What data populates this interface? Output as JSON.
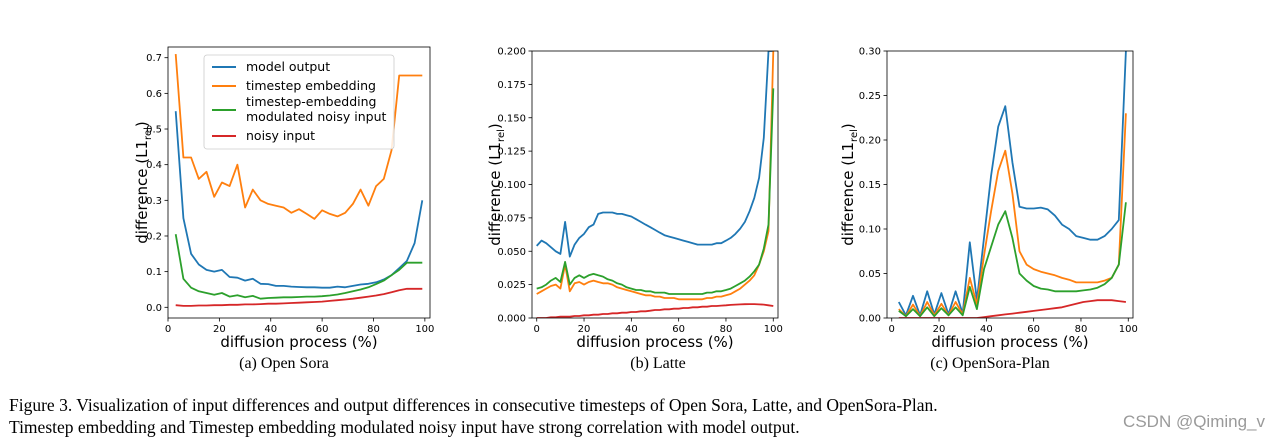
{
  "colors": {
    "model_output": "#1f77b4",
    "timestep_embedding": "#ff7f0e",
    "modulated_input": "#2ca02c",
    "noisy_input": "#d62728"
  },
  "chart_data": [
    {
      "type": "line",
      "title": "",
      "subcaption": "(a) Open Sora",
      "xlabel": "diffusion process (%)",
      "ylabel_main": "difference (L1",
      "ylabel_sub": "rel",
      "ylabel_close": ")",
      "xlim": [
        0,
        102
      ],
      "ylim": [
        -0.03,
        0.73
      ],
      "xticks": [
        0,
        20,
        40,
        60,
        80,
        100
      ],
      "yticks": [
        0.0,
        0.1,
        0.2,
        0.3,
        0.4,
        0.5,
        0.6,
        0.7
      ],
      "ytick_labels": [
        "0.0",
        "0.1",
        "0.2",
        "0.3",
        "0.4",
        "0.5",
        "0.6",
        "0.7"
      ],
      "legend": {
        "placement": "top-left",
        "entries": [
          {
            "key": "model_output",
            "label": "model output"
          },
          {
            "key": "timestep_embedding",
            "label": "timestep embedding"
          },
          {
            "key": "modulated_input",
            "label": "timestep-embedding",
            "label2": "modulated noisy input"
          },
          {
            "key": "noisy_input",
            "label": "noisy input"
          }
        ]
      },
      "x": [
        3,
        6,
        9,
        12,
        15,
        18,
        21,
        24,
        27,
        30,
        33,
        36,
        39,
        42,
        45,
        48,
        51,
        54,
        57,
        60,
        63,
        66,
        69,
        72,
        75,
        78,
        81,
        84,
        87,
        90,
        93,
        96,
        99
      ],
      "series": [
        {
          "name": "model output",
          "key": "model_output",
          "values": [
            0.55,
            0.25,
            0.15,
            0.12,
            0.105,
            0.1,
            0.105,
            0.085,
            0.083,
            0.075,
            0.08,
            0.066,
            0.065,
            0.06,
            0.06,
            0.058,
            0.057,
            0.056,
            0.056,
            0.055,
            0.055,
            0.058,
            0.056,
            0.06,
            0.064,
            0.066,
            0.07,
            0.078,
            0.09,
            0.11,
            0.13,
            0.18,
            0.3
          ]
        },
        {
          "name": "timestep embedding",
          "key": "timestep_embedding",
          "values": [
            0.71,
            0.42,
            0.42,
            0.36,
            0.38,
            0.31,
            0.35,
            0.34,
            0.4,
            0.28,
            0.33,
            0.3,
            0.29,
            0.285,
            0.28,
            0.265,
            0.275,
            0.262,
            0.248,
            0.272,
            0.262,
            0.255,
            0.265,
            0.29,
            0.33,
            0.285,
            0.34,
            0.36,
            0.44,
            0.65,
            0.65,
            0.65,
            0.65
          ]
        },
        {
          "name": "timestep-embedding modulated noisy input",
          "key": "modulated_input",
          "values": [
            0.205,
            0.08,
            0.055,
            0.045,
            0.04,
            0.035,
            0.04,
            0.03,
            0.034,
            0.028,
            0.032,
            0.024,
            0.026,
            0.027,
            0.028,
            0.028,
            0.029,
            0.03,
            0.03,
            0.031,
            0.033,
            0.036,
            0.04,
            0.045,
            0.05,
            0.056,
            0.065,
            0.075,
            0.09,
            0.105,
            0.125,
            0.125,
            0.125
          ]
        },
        {
          "name": "noisy input",
          "key": "noisy_input",
          "values": [
            0.006,
            0.004,
            0.004,
            0.005,
            0.005,
            0.006,
            0.006,
            0.007,
            0.007,
            0.008,
            0.008,
            0.009,
            0.01,
            0.01,
            0.011,
            0.012,
            0.013,
            0.014,
            0.015,
            0.016,
            0.018,
            0.02,
            0.022,
            0.024,
            0.027,
            0.03,
            0.033,
            0.037,
            0.042,
            0.048,
            0.052,
            0.052,
            0.052
          ]
        }
      ]
    },
    {
      "type": "line",
      "title": "",
      "subcaption": "(b) Latte",
      "xlabel": "diffusion process (%)",
      "ylabel_main": "difference (L1",
      "ylabel_sub": "rel",
      "ylabel_close": ")",
      "xlim": [
        -2,
        102
      ],
      "ylim": [
        0.0,
        0.2
      ],
      "xticks": [
        0,
        20,
        40,
        60,
        80,
        100
      ],
      "yticks": [
        0.0,
        0.025,
        0.05,
        0.075,
        0.1,
        0.125,
        0.15,
        0.175,
        0.2
      ],
      "ytick_labels": [
        "0.000",
        "0.025",
        "0.050",
        "0.075",
        "0.100",
        "0.125",
        "0.150",
        "0.175",
        "0.200"
      ],
      "x": [
        0,
        2,
        4,
        6,
        8,
        10,
        12,
        14,
        16,
        18,
        20,
        22,
        24,
        26,
        28,
        30,
        32,
        34,
        36,
        38,
        40,
        42,
        44,
        46,
        48,
        50,
        52,
        54,
        56,
        58,
        60,
        62,
        64,
        66,
        68,
        70,
        72,
        74,
        76,
        78,
        80,
        82,
        84,
        86,
        88,
        90,
        92,
        94,
        96,
        98,
        100
      ],
      "series": [
        {
          "name": "model output",
          "key": "model_output",
          "values": [
            0.054,
            0.058,
            0.056,
            0.053,
            0.05,
            0.048,
            0.072,
            0.046,
            0.055,
            0.06,
            0.063,
            0.068,
            0.07,
            0.078,
            0.079,
            0.079,
            0.079,
            0.078,
            0.078,
            0.077,
            0.076,
            0.074,
            0.072,
            0.07,
            0.068,
            0.066,
            0.064,
            0.062,
            0.061,
            0.06,
            0.059,
            0.058,
            0.057,
            0.056,
            0.055,
            0.055,
            0.055,
            0.055,
            0.056,
            0.056,
            0.058,
            0.06,
            0.063,
            0.067,
            0.072,
            0.08,
            0.09,
            0.105,
            0.135,
            0.2,
            0.2
          ]
        },
        {
          "name": "timestep embedding",
          "key": "timestep_embedding",
          "values": [
            0.018,
            0.02,
            0.022,
            0.024,
            0.025,
            0.022,
            0.04,
            0.02,
            0.026,
            0.027,
            0.025,
            0.027,
            0.028,
            0.027,
            0.026,
            0.026,
            0.025,
            0.023,
            0.022,
            0.021,
            0.02,
            0.019,
            0.018,
            0.017,
            0.017,
            0.016,
            0.016,
            0.015,
            0.015,
            0.015,
            0.014,
            0.014,
            0.014,
            0.014,
            0.014,
            0.014,
            0.015,
            0.015,
            0.016,
            0.016,
            0.017,
            0.018,
            0.02,
            0.022,
            0.025,
            0.028,
            0.032,
            0.04,
            0.05,
            0.065,
            0.2
          ]
        },
        {
          "name": "timestep-embedding modulated noisy input",
          "key": "modulated_input",
          "values": [
            0.022,
            0.023,
            0.025,
            0.028,
            0.03,
            0.027,
            0.042,
            0.025,
            0.03,
            0.032,
            0.03,
            0.032,
            0.033,
            0.032,
            0.031,
            0.029,
            0.028,
            0.026,
            0.025,
            0.023,
            0.022,
            0.021,
            0.021,
            0.02,
            0.02,
            0.019,
            0.019,
            0.019,
            0.018,
            0.018,
            0.018,
            0.018,
            0.018,
            0.018,
            0.018,
            0.018,
            0.019,
            0.019,
            0.02,
            0.02,
            0.021,
            0.022,
            0.024,
            0.026,
            0.028,
            0.031,
            0.035,
            0.04,
            0.052,
            0.07,
            0.172
          ]
        },
        {
          "name": "noisy input",
          "key": "noisy_input",
          "values": [
            0.0,
            0.0,
            0.0,
            0.0005,
            0.0005,
            0.001,
            0.001,
            0.001,
            0.0015,
            0.0015,
            0.002,
            0.002,
            0.0025,
            0.0025,
            0.003,
            0.003,
            0.0035,
            0.0035,
            0.004,
            0.004,
            0.0045,
            0.0045,
            0.005,
            0.005,
            0.0055,
            0.006,
            0.006,
            0.0065,
            0.0065,
            0.007,
            0.007,
            0.0075,
            0.0075,
            0.008,
            0.008,
            0.0085,
            0.0085,
            0.009,
            0.009,
            0.0093,
            0.0095,
            0.0098,
            0.01,
            0.0102,
            0.0103,
            0.0104,
            0.0104,
            0.0102,
            0.01,
            0.0095,
            0.009
          ]
        }
      ]
    },
    {
      "type": "line",
      "title": "",
      "subcaption": "(c) OpenSora-Plan",
      "xlabel": "diffusion process (%)",
      "ylabel_main": "difference (L1",
      "ylabel_sub": "rel",
      "ylabel_close": ")",
      "xlim": [
        -2,
        102
      ],
      "ylim": [
        0.0,
        0.3
      ],
      "xticks": [
        0,
        20,
        40,
        60,
        80,
        100
      ],
      "yticks": [
        0.0,
        0.05,
        0.1,
        0.15,
        0.2,
        0.25,
        0.3
      ],
      "ytick_labels": [
        "0.00",
        "0.05",
        "0.10",
        "0.15",
        "0.20",
        "0.25",
        "0.30"
      ],
      "x": [
        3,
        6,
        9,
        12,
        15,
        18,
        21,
        24,
        27,
        30,
        33,
        36,
        39,
        42,
        45,
        48,
        51,
        54,
        57,
        60,
        63,
        66,
        69,
        72,
        75,
        78,
        81,
        84,
        87,
        90,
        93,
        96,
        99
      ],
      "series": [
        {
          "name": "model output",
          "key": "model_output",
          "values": [
            0.018,
            0.003,
            0.025,
            0.003,
            0.03,
            0.004,
            0.028,
            0.004,
            0.03,
            0.005,
            0.085,
            0.02,
            0.09,
            0.16,
            0.215,
            0.238,
            0.175,
            0.125,
            0.123,
            0.123,
            0.124,
            0.122,
            0.115,
            0.105,
            0.1,
            0.092,
            0.09,
            0.088,
            0.088,
            0.092,
            0.1,
            0.11,
            0.3
          ]
        },
        {
          "name": "timestep embedding",
          "key": "timestep_embedding",
          "values": [
            0.01,
            0.002,
            0.015,
            0.002,
            0.018,
            0.003,
            0.016,
            0.003,
            0.018,
            0.004,
            0.045,
            0.015,
            0.07,
            0.12,
            0.165,
            0.188,
            0.14,
            0.075,
            0.06,
            0.055,
            0.052,
            0.05,
            0.048,
            0.045,
            0.043,
            0.04,
            0.04,
            0.04,
            0.04,
            0.042,
            0.045,
            0.06,
            0.23
          ]
        },
        {
          "name": "timestep-embedding modulated noisy input",
          "key": "modulated_input",
          "values": [
            0.008,
            0.002,
            0.01,
            0.002,
            0.012,
            0.002,
            0.011,
            0.003,
            0.012,
            0.003,
            0.035,
            0.01,
            0.055,
            0.08,
            0.105,
            0.12,
            0.09,
            0.05,
            0.042,
            0.036,
            0.033,
            0.032,
            0.03,
            0.03,
            0.03,
            0.03,
            0.031,
            0.032,
            0.034,
            0.038,
            0.045,
            0.06,
            0.13
          ]
        },
        {
          "name": "noisy input",
          "key": "noisy_input",
          "values": [
            0.0,
            0.0,
            0.0,
            0.0,
            0.0,
            0.0,
            0.0,
            0.0,
            0.0,
            0.0,
            0.0,
            0.0,
            0.001,
            0.002,
            0.003,
            0.004,
            0.005,
            0.006,
            0.007,
            0.008,
            0.009,
            0.01,
            0.011,
            0.012,
            0.014,
            0.016,
            0.018,
            0.019,
            0.02,
            0.02,
            0.02,
            0.019,
            0.018
          ]
        }
      ]
    }
  ],
  "caption": {
    "line1": "Figure 3.  Visualization of input differences and output differences in consecutive timesteps of Open Sora, Latte, and OpenSora-Plan.",
    "line2": "Timestep embedding and Timestep embedding modulated noisy input have strong correlation with model output."
  },
  "watermark": "CSDN @Qiming_v"
}
